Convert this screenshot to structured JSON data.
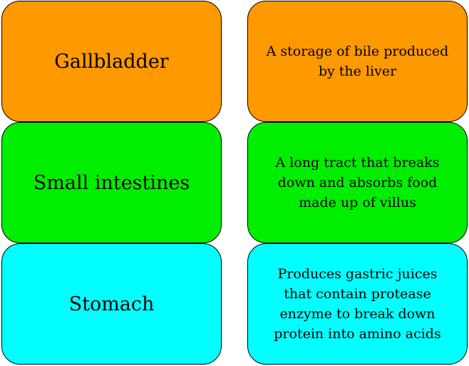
{
  "cards": [
    {
      "term": "Gallbladder",
      "definition": "A storage of bile produced by the liver",
      "color": "#ff9900"
    },
    {
      "term": "Small intestines",
      "definition": "A long tract that breaks down and absorbs food made up of villus",
      "color": "#00ef00"
    },
    {
      "term": "Stomach",
      "definition": "Produces gastric juices that contain protease enzyme to break down protein into amino acids",
      "color": "#00ffff"
    }
  ]
}
